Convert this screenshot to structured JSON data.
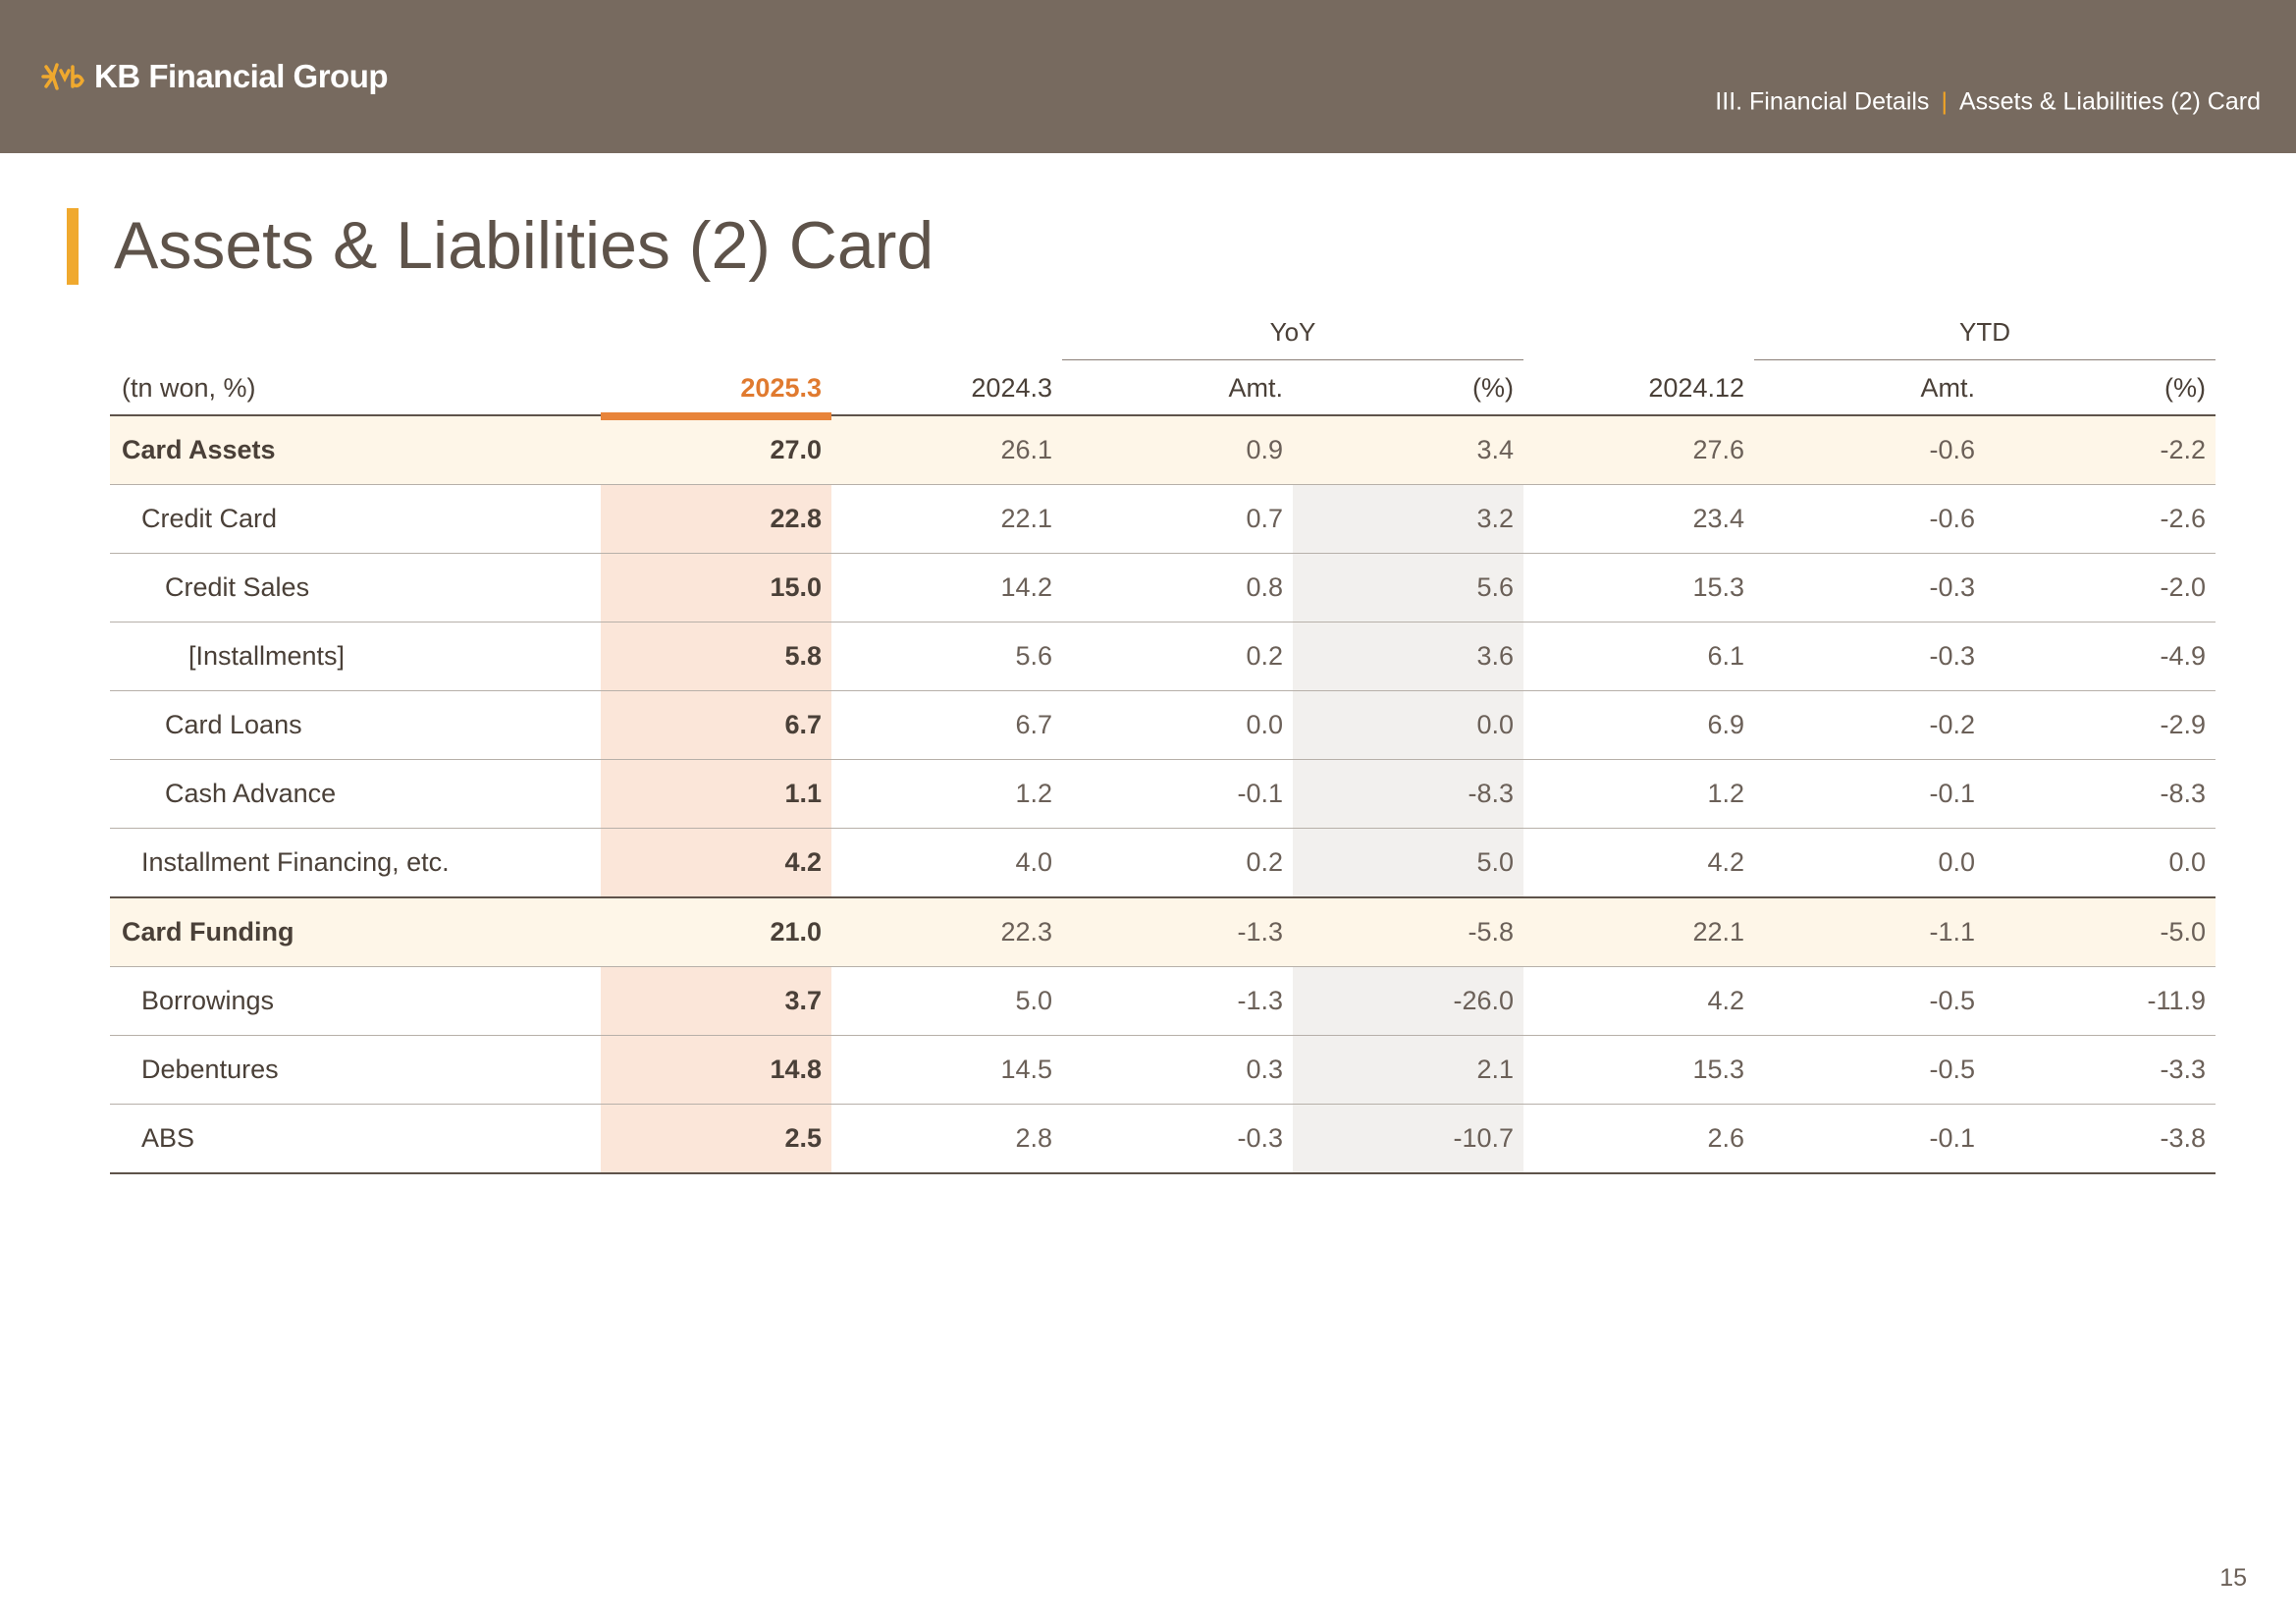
{
  "header": {
    "brand": "KB Financial Group",
    "breadcrumb_section": "III. Financial Details",
    "breadcrumb_separator": "|",
    "breadcrumb_page": "Assets & Liabilities (2) Card"
  },
  "page": {
    "title": "Assets & Liabilities (2) Card",
    "number": "15"
  },
  "colors": {
    "header_bg": "#776a5f",
    "accent_orange": "#e07a2f",
    "accent_yellow": "#f0a92e"
  },
  "table": {
    "groups": {
      "yoy": "YoY",
      "ytd": "YTD"
    },
    "columns": [
      "(tn won, %)",
      "2025.3",
      "2024.3",
      "Amt.",
      "(%)",
      "2024.12",
      "Amt.",
      "(%)"
    ],
    "rows": [
      {
        "label": "Card Assets",
        "level": 0,
        "main": true,
        "values": [
          "27.0",
          "26.1",
          "0.9",
          "3.4",
          "27.6",
          "-0.6",
          "-2.2"
        ]
      },
      {
        "label": "Credit Card",
        "level": 1,
        "main": false,
        "values": [
          "22.8",
          "22.1",
          "0.7",
          "3.2",
          "23.4",
          "-0.6",
          "-2.6"
        ]
      },
      {
        "label": "Credit Sales",
        "level": 2,
        "main": false,
        "values": [
          "15.0",
          "14.2",
          "0.8",
          "5.6",
          "15.3",
          "-0.3",
          "-2.0"
        ]
      },
      {
        "label": "[Installments]",
        "level": 3,
        "main": false,
        "values": [
          "5.8",
          "5.6",
          "0.2",
          "3.6",
          "6.1",
          "-0.3",
          "-4.9"
        ]
      },
      {
        "label": "Card Loans",
        "level": 2,
        "main": false,
        "values": [
          "6.7",
          "6.7",
          "0.0",
          "0.0",
          "6.9",
          "-0.2",
          "-2.9"
        ]
      },
      {
        "label": "Cash Advance",
        "level": 2,
        "main": false,
        "values": [
          "1.1",
          "1.2",
          "-0.1",
          "-8.3",
          "1.2",
          "-0.1",
          "-8.3"
        ]
      },
      {
        "label": "Installment Financing, etc.",
        "level": 1,
        "main": false,
        "section_end": true,
        "values": [
          "4.2",
          "4.0",
          "0.2",
          "5.0",
          "4.2",
          "0.0",
          "0.0"
        ]
      },
      {
        "label": "Card Funding",
        "level": 0,
        "main": true,
        "values": [
          "21.0",
          "22.3",
          "-1.3",
          "-5.8",
          "22.1",
          "-1.1",
          "-5.0"
        ]
      },
      {
        "label": "Borrowings",
        "level": 1,
        "main": false,
        "values": [
          "3.7",
          "5.0",
          "-1.3",
          "-26.0",
          "4.2",
          "-0.5",
          "-11.9"
        ]
      },
      {
        "label": "Debentures",
        "level": 1,
        "main": false,
        "values": [
          "14.8",
          "14.5",
          "0.3",
          "2.1",
          "15.3",
          "-0.5",
          "-3.3"
        ]
      },
      {
        "label": "ABS",
        "level": 1,
        "main": false,
        "values": [
          "2.5",
          "2.8",
          "-0.3",
          "-10.7",
          "2.6",
          "-0.1",
          "-3.8"
        ]
      }
    ]
  }
}
